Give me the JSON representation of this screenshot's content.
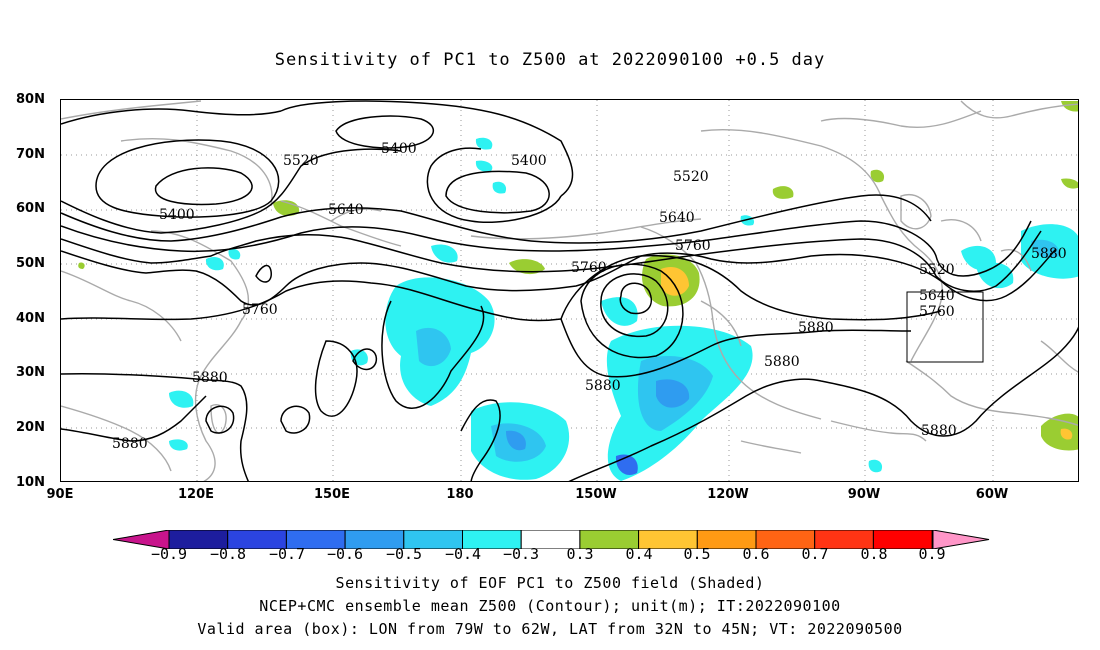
{
  "title": "Sensitivity of PC1 to Z500 at 2022090100 +0.5 day",
  "y_axis_labels": [
    "80N",
    "70N",
    "60N",
    "50N",
    "40N",
    "30N",
    "20N",
    "10N"
  ],
  "x_axis_labels": [
    "90E",
    "120E",
    "150E",
    "180",
    "150W",
    "120W",
    "90W",
    "60W"
  ],
  "contour_labels": [
    "5400",
    "5400",
    "5400",
    "5520",
    "5520",
    "5520",
    "5640",
    "5640",
    "5640",
    "5760",
    "5760",
    "5760",
    "5760",
    "5880",
    "5880",
    "5880",
    "5880",
    "5880",
    "5880",
    "5880"
  ],
  "colorbar": {
    "labels": [
      "−0.9",
      "−0.8",
      "−0.7",
      "−0.6",
      "−0.5",
      "−0.4",
      "−0.3",
      "0.3",
      "0.4",
      "0.5",
      "0.6",
      "0.7",
      "0.8",
      "0.9"
    ],
    "colors": [
      "#1d1d9e",
      "#2b44e0",
      "#2f6df0",
      "#2f9cf0",
      "#2fc5f0",
      "#2ef2f2",
      "#ffffff",
      "#9acd32",
      "#ffc533",
      "#ff9a14",
      "#ff6414",
      "#ff3414",
      "#ff0000"
    ],
    "low_end_color": "#c8148c",
    "high_end_color": "#ff96c8"
  },
  "captions": {
    "line1": "Sensitivity of EOF PC1 to Z500 field (Shaded)",
    "line2": "NCEP+CMC ensemble mean Z500 (Contour); unit(m); IT:2022090100",
    "line3": "Valid area (box): LON from 79W to 62W, LAT from 32N to 45N; VT: 2022090500"
  },
  "valid_box": {
    "lon": [
      "79W",
      "62W"
    ],
    "lat": [
      "32N",
      "45N"
    ]
  }
}
